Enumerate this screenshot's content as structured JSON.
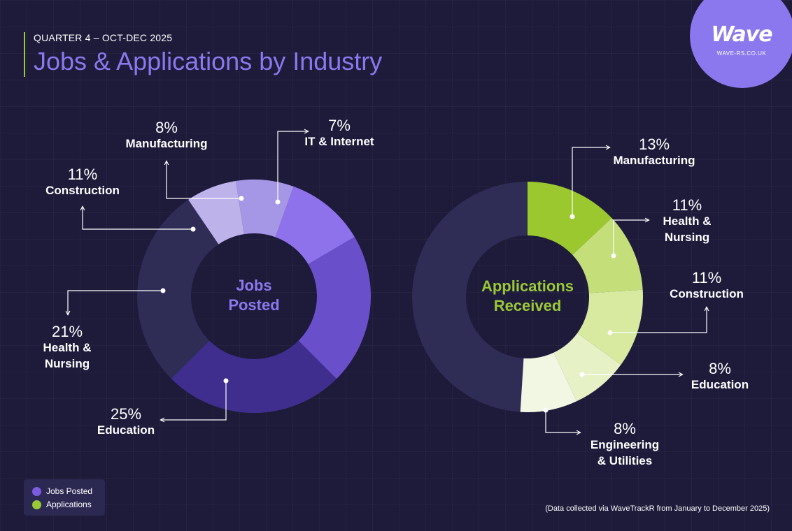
{
  "header": {
    "quarter": "QUARTER 4 – OCT-DEC 2025",
    "title": "Jobs & Applications by Industry"
  },
  "brand": {
    "logo": "Wave",
    "url": "WAVE-RS.CO.UK"
  },
  "legend": {
    "items": [
      {
        "label": "Jobs Posted",
        "color": "#7b5ce0"
      },
      {
        "label": "Applications",
        "color": "#9ac837"
      }
    ]
  },
  "footnote": "(Data collected via WaveTrackR from January to December 2025)",
  "colors": {
    "background": "#1d1a3a",
    "accent_purple": "#8b78ee",
    "accent_green": "#9ac837",
    "remainder": "#2f2c55"
  },
  "chart_data": [
    {
      "type": "pie",
      "donut": true,
      "center_label_lines": [
        "Jobs",
        "Posted"
      ],
      "categories": [
        "Education",
        "Health & Nursing",
        "Construction",
        "Manufacturing",
        "IT & Internet"
      ],
      "values": [
        25,
        21,
        11,
        8,
        7
      ],
      "labels": [
        "25%",
        "21%",
        "11%",
        "8%",
        "7%"
      ],
      "colors": [
        "#3f2e8e",
        "#6a4fcb",
        "#8d72ec",
        "#a596e6",
        "#bdb2ea"
      ],
      "remainder_color": "#2f2c55"
    },
    {
      "type": "pie",
      "donut": true,
      "center_label_lines": [
        "Applications",
        "Received"
      ],
      "categories": [
        "Manufacturing",
        "Health & Nursing",
        "Construction",
        "Education",
        "Engineering & Utilities"
      ],
      "category_lines": [
        [
          "Manufacturing"
        ],
        [
          "Health &",
          "Nursing"
        ],
        [
          "Construction"
        ],
        [
          "Education"
        ],
        [
          "Engineering",
          "& Utilities"
        ]
      ],
      "values": [
        13,
        11,
        11,
        8,
        8
      ],
      "labels": [
        "13%",
        "11%",
        "11%",
        "8%",
        "8%"
      ],
      "colors": [
        "#9ac82e",
        "#c4de7a",
        "#d7eaa0",
        "#e6f1c6",
        "#f2f7e4"
      ],
      "remainder_color": "#2f2c55"
    }
  ]
}
